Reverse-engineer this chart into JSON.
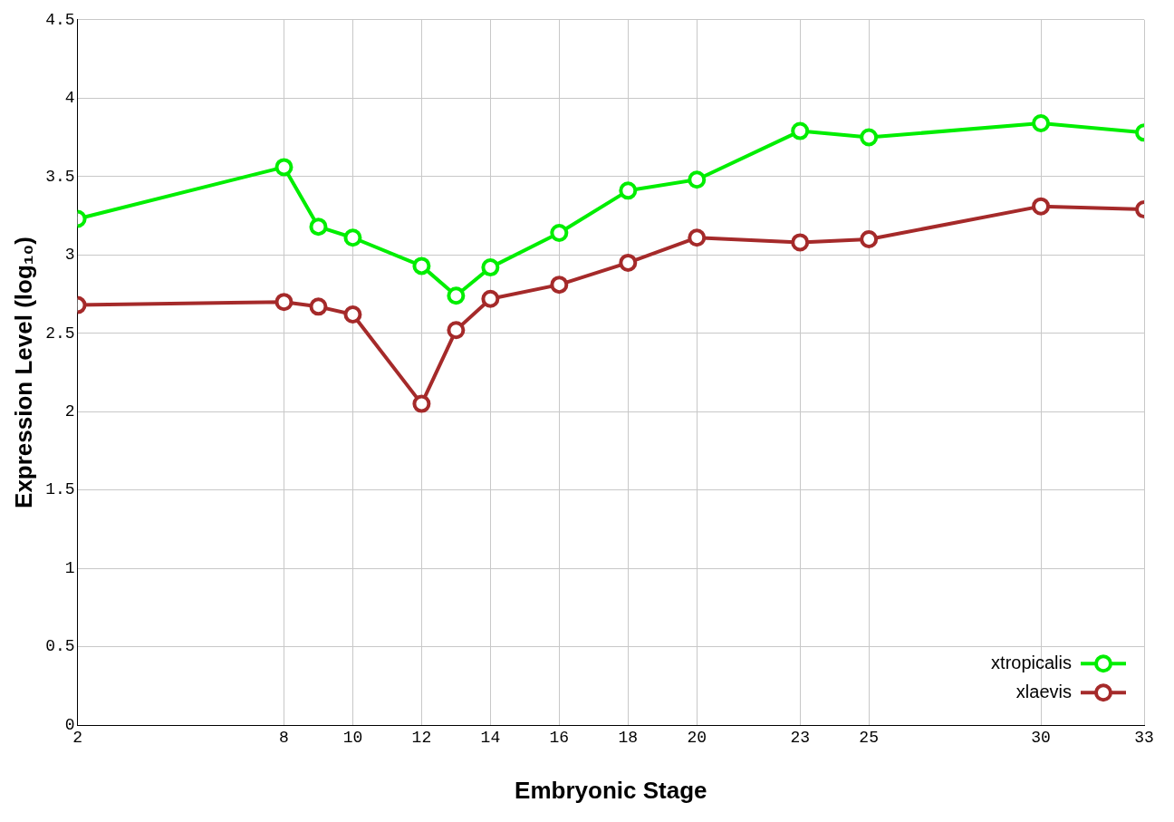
{
  "chart_data": {
    "type": "line",
    "xlabel": "Embryonic Stage",
    "ylabel": "Expression Level (log₁₀)",
    "x": [
      2,
      8,
      9,
      10,
      12,
      13,
      14,
      16,
      18,
      20,
      23,
      25,
      30,
      33
    ],
    "series": [
      {
        "name": "xtropicalis",
        "color": "#00ee00",
        "values": [
          3.23,
          3.56,
          3.18,
          3.11,
          2.93,
          2.74,
          2.92,
          3.14,
          3.41,
          3.48,
          3.79,
          3.75,
          3.84,
          3.78
        ]
      },
      {
        "name": "xlaevis",
        "color": "#a52a2a",
        "values": [
          2.68,
          2.7,
          2.67,
          2.62,
          2.05,
          2.52,
          2.72,
          2.81,
          2.95,
          3.11,
          3.08,
          3.1,
          3.31,
          3.29
        ]
      }
    ],
    "xlim": [
      2,
      33
    ],
    "xticks": [
      2,
      8,
      10,
      12,
      14,
      16,
      18,
      20,
      23,
      25,
      30,
      33
    ],
    "ylim": [
      0,
      4.5
    ],
    "yticks": [
      0,
      0.5,
      1,
      1.5,
      2,
      2.5,
      3,
      3.5,
      4,
      4.5
    ],
    "grid": true,
    "legend": "bottom right",
    "marker": "circle",
    "line_style": "solid"
  }
}
